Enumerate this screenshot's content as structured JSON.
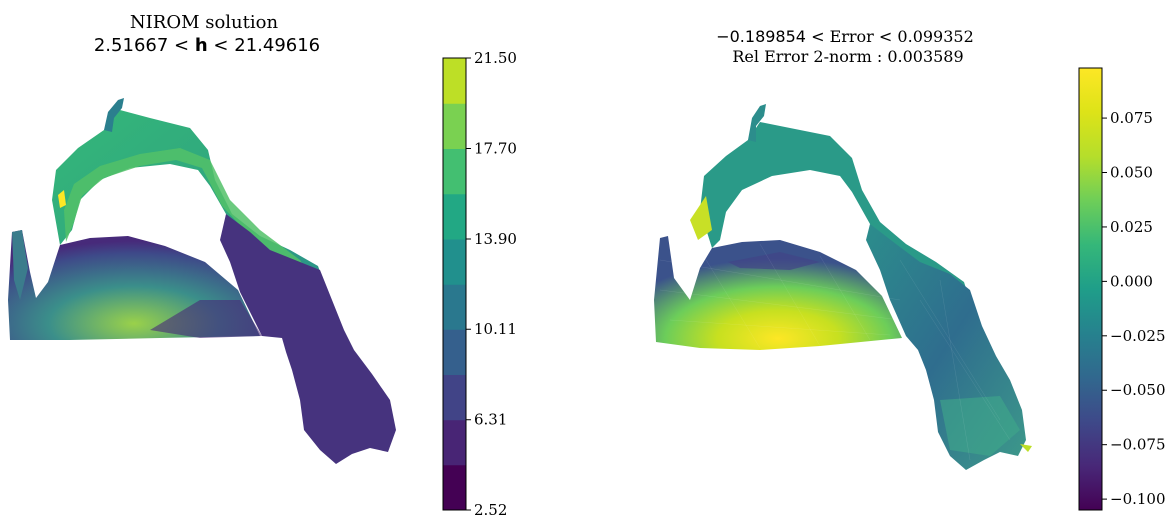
{
  "chart_data": [
    {
      "type": "heatmap",
      "title": "NIROM solution",
      "subtitle": {
        "low": "2.51667",
        "op1": "<",
        "var": "h",
        "op2": "<",
        "high": "21.49616"
      },
      "colorbar": {
        "levels": [
          2.52,
          4.42,
          6.31,
          8.21,
          10.11,
          12.0,
          13.9,
          15.8,
          17.7,
          19.6,
          21.5
        ],
        "ticks": [
          "21.50",
          "17.70",
          "13.90",
          "10.11",
          "6.31",
          "2.52"
        ],
        "range": [
          2.52,
          21.5
        ],
        "colors": [
          "#440154",
          "#482575",
          "#414487",
          "#35608d",
          "#2a788e",
          "#21908d",
          "#22a884",
          "#43bf71",
          "#7ad151",
          "#bddf26",
          "#e2e418"
        ]
      }
    },
    {
      "type": "heatmap",
      "title_parts": {
        "low": "−0.189854",
        "op1": "<",
        "label": "Error",
        "op2": "<",
        "high": "0.099352"
      },
      "subtitle": "Rel Error 2-norm : 0.003589",
      "colorbar": {
        "range": [
          -0.105,
          0.098
        ],
        "ticks": [
          {
            "value": 0.075,
            "label": "0.075"
          },
          {
            "value": 0.05,
            "label": "0.050"
          },
          {
            "value": 0.025,
            "label": "0.025"
          },
          {
            "value": 0.0,
            "label": "0.000"
          },
          {
            "value": -0.025,
            "label": "−0.025"
          },
          {
            "value": -0.05,
            "label": "−0.050"
          },
          {
            "value": -0.075,
            "label": "−0.075"
          },
          {
            "value": -0.1,
            "label": "−0.100"
          }
        ]
      }
    }
  ]
}
